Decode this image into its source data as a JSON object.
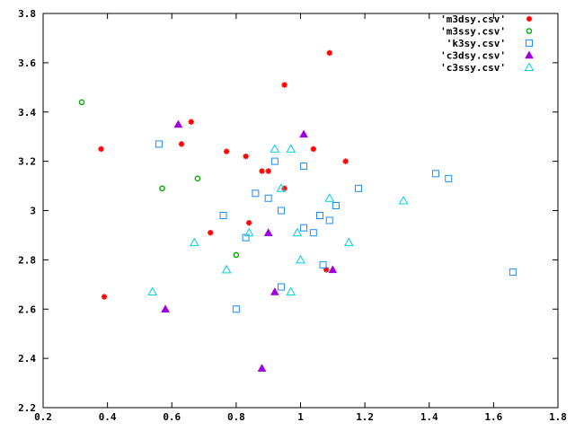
{
  "chart_data": {
    "type": "scatter",
    "title": "",
    "xlabel": "",
    "ylabel": "",
    "xlim": [
      0.2,
      1.8
    ],
    "ylim": [
      2.2,
      3.8
    ],
    "xticks": [
      0.2,
      0.4,
      0.6,
      0.8,
      1,
      1.2,
      1.4,
      1.6,
      1.8
    ],
    "xtick_labels": [
      "0.2",
      "0.4",
      "0.6",
      "0.8",
      "1",
      "1.2",
      "1.4",
      "1.6",
      "1.8"
    ],
    "yticks": [
      2.2,
      2.4,
      2.6,
      2.8,
      3,
      3.2,
      3.4,
      3.6,
      3.8
    ],
    "ytick_labels": [
      "2.2",
      "2.4",
      "2.6",
      "2.8",
      "3",
      "3.2",
      "3.4",
      "3.6",
      "3.8"
    ],
    "grid": false,
    "legend_position": "top-right",
    "series": [
      {
        "name": "'m3dsy.csv'",
        "marker": "asterisk",
        "color": "#ff0000",
        "points": [
          [
            0.38,
            3.25
          ],
          [
            0.39,
            2.65
          ],
          [
            0.63,
            3.27
          ],
          [
            0.66,
            3.36
          ],
          [
            0.72,
            2.91
          ],
          [
            0.77,
            3.24
          ],
          [
            0.83,
            3.22
          ],
          [
            0.84,
            2.95
          ],
          [
            0.88,
            3.16
          ],
          [
            0.9,
            3.16
          ],
          [
            0.95,
            3.51
          ],
          [
            0.95,
            3.09
          ],
          [
            1.04,
            3.25
          ],
          [
            1.08,
            2.76
          ],
          [
            1.09,
            3.64
          ],
          [
            1.14,
            3.2
          ]
        ]
      },
      {
        "name": "'m3ssy.csv'",
        "marker": "circle-open",
        "color": "#00aa00",
        "points": [
          [
            0.32,
            3.44
          ],
          [
            0.57,
            3.09
          ],
          [
            0.68,
            3.13
          ],
          [
            0.8,
            2.82
          ]
        ]
      },
      {
        "name": "'k3sy.csv'",
        "marker": "square-open",
        "color": "#1a8cff",
        "points": [
          [
            0.56,
            3.27
          ],
          [
            0.76,
            2.98
          ],
          [
            0.8,
            2.6
          ],
          [
            0.83,
            2.89
          ],
          [
            0.86,
            3.07
          ],
          [
            0.9,
            3.05
          ],
          [
            0.92,
            3.2
          ],
          [
            0.94,
            3.0
          ],
          [
            0.94,
            2.69
          ],
          [
            1.01,
            3.18
          ],
          [
            1.01,
            2.93
          ],
          [
            1.04,
            2.91
          ],
          [
            1.06,
            2.98
          ],
          [
            1.07,
            2.78
          ],
          [
            1.09,
            2.96
          ],
          [
            1.11,
            3.02
          ],
          [
            1.18,
            3.09
          ],
          [
            1.42,
            3.15
          ],
          [
            1.46,
            3.13
          ],
          [
            1.66,
            2.75
          ]
        ]
      },
      {
        "name": "'c3dsy.csv'",
        "marker": "triangle-filled",
        "color": "#a000e0",
        "points": [
          [
            0.58,
            2.6
          ],
          [
            0.62,
            3.35
          ],
          [
            0.88,
            2.36
          ],
          [
            0.9,
            2.91
          ],
          [
            0.92,
            2.67
          ],
          [
            1.01,
            3.31
          ],
          [
            1.1,
            2.76
          ]
        ]
      },
      {
        "name": "'c3ssy.csv'",
        "marker": "triangle-open",
        "color": "#00d0e0",
        "points": [
          [
            0.54,
            2.67
          ],
          [
            0.67,
            2.87
          ],
          [
            0.77,
            2.76
          ],
          [
            0.84,
            2.91
          ],
          [
            0.92,
            3.25
          ],
          [
            0.94,
            3.09
          ],
          [
            0.97,
            3.25
          ],
          [
            0.97,
            2.67
          ],
          [
            0.99,
            2.91
          ],
          [
            1.0,
            2.8
          ],
          [
            1.09,
            3.05
          ],
          [
            1.15,
            2.87
          ],
          [
            1.32,
            3.04
          ]
        ]
      }
    ]
  }
}
